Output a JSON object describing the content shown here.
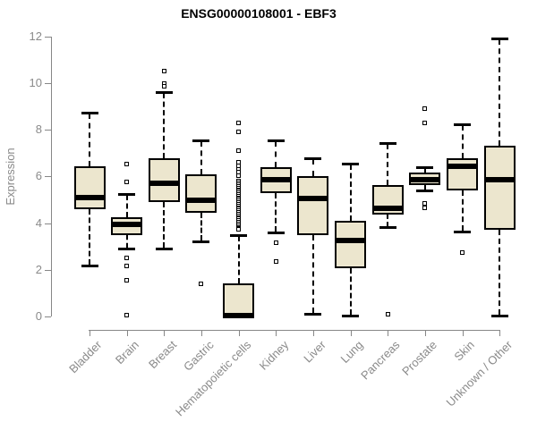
{
  "title": "ENSG00000108001 - EBF3",
  "ylabel": "Expression",
  "colors": {
    "background": "#FFFFFF",
    "box_fill": "#ECE6CE",
    "box_border": "#000000",
    "median": "#000000",
    "axis": "#878787",
    "tick_label": "#8A8A8A",
    "title_color": "#000000"
  },
  "chart_data": {
    "type": "boxplot",
    "title": "ENSG00000108001 - EBF3",
    "xlabel": "",
    "ylabel": "Expression",
    "ylim": [
      0,
      12
    ],
    "yticks": [
      0,
      2,
      4,
      6,
      8,
      10,
      12
    ],
    "grid": false,
    "legend": null,
    "categories": [
      "Bladder",
      "Brain",
      "Breast",
      "Gastric",
      "Hematopoietic cells",
      "Kidney",
      "Liver",
      "Lung",
      "Pancreas",
      "Prostate",
      "Skin",
      "Unknown / Other"
    ],
    "series": [
      {
        "category": "Bladder",
        "whisker_low": 2.2,
        "q1": 4.6,
        "median": 5.1,
        "q3": 6.45,
        "whisker_high": 8.75,
        "outliers": []
      },
      {
        "category": "Brain",
        "whisker_low": 2.9,
        "q1": 3.5,
        "median": 3.95,
        "q3": 4.25,
        "whisker_high": 5.25,
        "outliers": [
          6.55,
          5.75,
          2.5,
          2.15,
          1.55,
          0.05
        ]
      },
      {
        "category": "Breast",
        "whisker_low": 2.9,
        "q1": 4.9,
        "median": 5.7,
        "q3": 6.8,
        "whisker_high": 9.6,
        "outliers": [
          10.5,
          10.0,
          9.85
        ]
      },
      {
        "category": "Gastric",
        "whisker_low": 3.2,
        "q1": 4.45,
        "median": 5.0,
        "q3": 6.1,
        "whisker_high": 7.55,
        "outliers": [
          1.4
        ]
      },
      {
        "category": "Hematopoietic cells",
        "whisker_low": 0.0,
        "q1": 0.0,
        "median": 0.05,
        "q3": 1.4,
        "whisker_high": 3.5,
        "outliers": [
          8.3,
          7.9,
          7.1,
          6.6,
          6.45,
          6.3,
          6.17,
          6.02,
          5.79,
          5.72,
          5.65,
          5.58,
          5.51,
          5.44,
          5.37,
          5.3,
          5.23,
          5.16,
          5.09,
          5.02,
          4.95,
          4.88,
          4.81,
          4.74,
          4.67,
          4.6,
          4.53,
          4.46,
          4.39,
          4.32,
          4.25,
          4.18,
          4.11,
          4.04,
          3.97,
          3.9,
          3.83,
          3.76,
          3.72
        ]
      },
      {
        "category": "Kidney",
        "whisker_low": 3.6,
        "q1": 5.3,
        "median": 5.85,
        "q3": 6.4,
        "whisker_high": 7.55,
        "outliers": [
          3.15,
          2.35
        ]
      },
      {
        "category": "Liver",
        "whisker_low": 0.1,
        "q1": 3.5,
        "median": 5.05,
        "q3": 6.0,
        "whisker_high": 6.8,
        "outliers": []
      },
      {
        "category": "Lung",
        "whisker_low": 0.05,
        "q1": 2.05,
        "median": 3.25,
        "q3": 4.1,
        "whisker_high": 6.55,
        "outliers": []
      },
      {
        "category": "Pancreas",
        "whisker_low": 3.85,
        "q1": 4.35,
        "median": 4.65,
        "q3": 5.65,
        "whisker_high": 7.45,
        "outliers": [
          0.1
        ]
      },
      {
        "category": "Prostate",
        "whisker_low": 5.4,
        "q1": 5.65,
        "median": 5.85,
        "q3": 6.15,
        "whisker_high": 6.4,
        "outliers": [
          8.9,
          8.3,
          4.85,
          4.65
        ]
      },
      {
        "category": "Skin",
        "whisker_low": 3.65,
        "q1": 5.4,
        "median": 6.45,
        "q3": 6.8,
        "whisker_high": 8.25,
        "outliers": [
          2.75
        ]
      },
      {
        "category": "Unknown / Other",
        "whisker_low": 0.05,
        "q1": 3.7,
        "median": 5.85,
        "q3": 7.3,
        "whisker_high": 11.9,
        "outliers": []
      }
    ]
  }
}
